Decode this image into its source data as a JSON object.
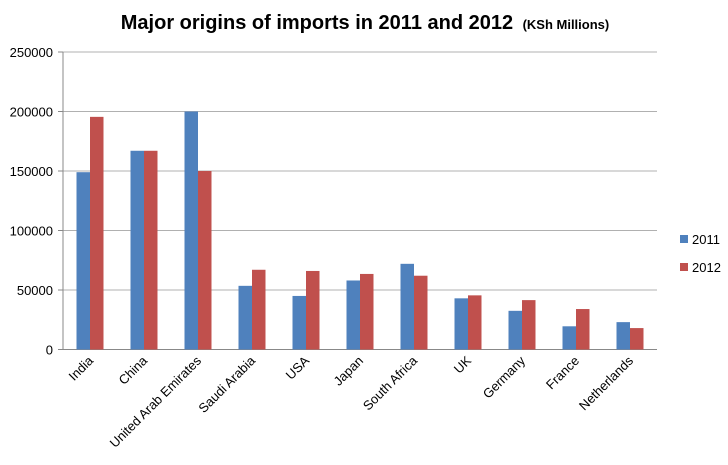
{
  "chart_data": {
    "type": "bar",
    "title": "Major origins of imports in 2011 and 2012",
    "subtitle": "(KSh Millions)",
    "xlabel": "",
    "ylabel": "",
    "ylim": [
      0,
      250000
    ],
    "yticks": [
      "0",
      "50000",
      "100000",
      "150000",
      "200000",
      "250000"
    ],
    "grid": true,
    "legend_position": "right",
    "categories": [
      "India",
      "China",
      "United Arab Emirates",
      "Saudi Arabia",
      "USA",
      "Japan",
      "South Africa",
      "UK",
      "Germany",
      "France",
      "Netherlands"
    ],
    "series": [
      {
        "name": "2011",
        "color": "#4F81BD",
        "values": [
          149000,
          167000,
          200000,
          53500,
          45000,
          58000,
          72000,
          43000,
          32500,
          19500,
          23000
        ]
      },
      {
        "name": "2012",
        "color": "#C0504D",
        "values": [
          195500,
          167000,
          150000,
          67000,
          66000,
          63500,
          62000,
          45500,
          41500,
          34000,
          18000
        ]
      }
    ]
  }
}
